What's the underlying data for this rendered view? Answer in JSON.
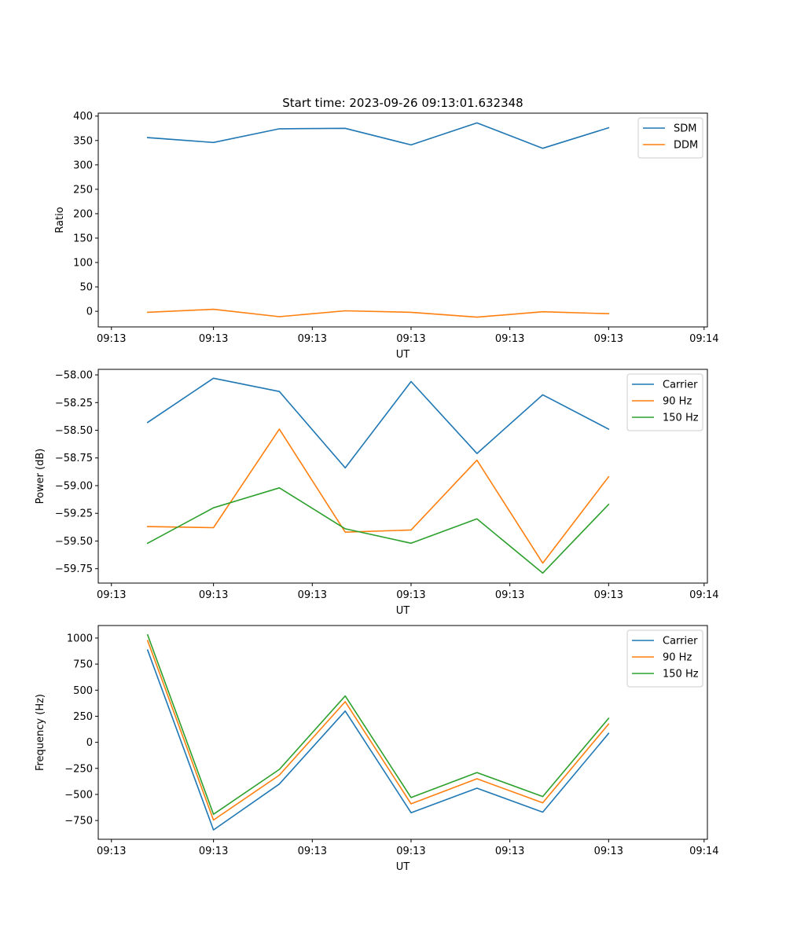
{
  "figure_title": "Start time: 2023-09-26 09:13:01.632348",
  "chart_data": [
    {
      "type": "line",
      "title": "Start time: 2023-09-26 09:13:01.632348",
      "xlabel": "UT",
      "ylabel": "Ratio",
      "x_tick_labels": [
        "09:13",
        "09:13",
        "09:13",
        "09:13",
        "09:13",
        "09:13",
        "09:14"
      ],
      "yticks": [
        0,
        50,
        100,
        150,
        200,
        250,
        300,
        350,
        400
      ],
      "ytick_labels": [
        "0",
        "50",
        "100",
        "150",
        "200",
        "250",
        "300",
        "350",
        "400"
      ],
      "ylim": [
        -32,
        406
      ],
      "legend_position": "top-right",
      "grid": false,
      "x": [
        1,
        2,
        3,
        4,
        5,
        6,
        7,
        8
      ],
      "series": [
        {
          "name": "SDM",
          "color": "#1f77b4",
          "values": [
            356,
            346,
            374,
            375,
            341,
            386,
            334,
            376
          ]
        },
        {
          "name": "DDM",
          "color": "#ff7f0e",
          "values": [
            -2,
            4,
            -11,
            1,
            -2,
            -12,
            -1,
            -5
          ]
        }
      ]
    },
    {
      "type": "line",
      "title": "",
      "xlabel": "UT",
      "ylabel": "Power (dB)",
      "x_tick_labels": [
        "09:13",
        "09:13",
        "09:13",
        "09:13",
        "09:13",
        "09:13",
        "09:14"
      ],
      "yticks": [
        -59.75,
        -59.5,
        -59.25,
        -59.0,
        -58.75,
        -58.5,
        -58.25,
        -58.0
      ],
      "ytick_labels": [
        "−59.75",
        "−59.50",
        "−59.25",
        "−59.00",
        "−58.75",
        "−58.50",
        "−58.25",
        "−58.00"
      ],
      "ylim": [
        -59.88,
        -57.95
      ],
      "legend_position": "top-right",
      "grid": false,
      "x": [
        1,
        2,
        3,
        4,
        5,
        6,
        7,
        8
      ],
      "series": [
        {
          "name": "Carrier",
          "color": "#1f77b4",
          "values": [
            -58.43,
            -58.03,
            -58.15,
            -58.84,
            -58.06,
            -58.71,
            -58.18,
            -58.49
          ]
        },
        {
          "name": "90 Hz",
          "color": "#ff7f0e",
          "values": [
            -59.37,
            -59.38,
            -58.49,
            -59.42,
            -59.4,
            -58.77,
            -59.7,
            -58.92
          ]
        },
        {
          "name": "150 Hz",
          "color": "#2ca02c",
          "values": [
            -59.52,
            -59.2,
            -59.02,
            -59.39,
            -59.52,
            -59.3,
            -59.79,
            -59.17
          ]
        }
      ]
    },
    {
      "type": "line",
      "title": "",
      "xlabel": "UT",
      "ylabel": "Frequency (Hz)",
      "x_tick_labels": [
        "09:13",
        "09:13",
        "09:13",
        "09:13",
        "09:13",
        "09:13",
        "09:14"
      ],
      "yticks": [
        -750,
        -500,
        -250,
        0,
        250,
        500,
        750,
        1000
      ],
      "ytick_labels": [
        "−750",
        "−500",
        "−250",
        "0",
        "250",
        "500",
        "750",
        "1000"
      ],
      "ylim": [
        -930,
        1120
      ],
      "legend_position": "top-right",
      "grid": false,
      "x": [
        1,
        2,
        3,
        4,
        5,
        6,
        7,
        8
      ],
      "series": [
        {
          "name": "Carrier",
          "color": "#1f77b4",
          "values": [
            885,
            -840,
            -400,
            300,
            -675,
            -440,
            -670,
            85
          ]
        },
        {
          "name": "90 Hz",
          "color": "#ff7f0e",
          "values": [
            975,
            -745,
            -315,
            390,
            -590,
            -350,
            -580,
            175
          ]
        },
        {
          "name": "150 Hz",
          "color": "#2ca02c",
          "values": [
            1030,
            -690,
            -260,
            445,
            -530,
            -290,
            -520,
            230
          ]
        }
      ]
    }
  ]
}
